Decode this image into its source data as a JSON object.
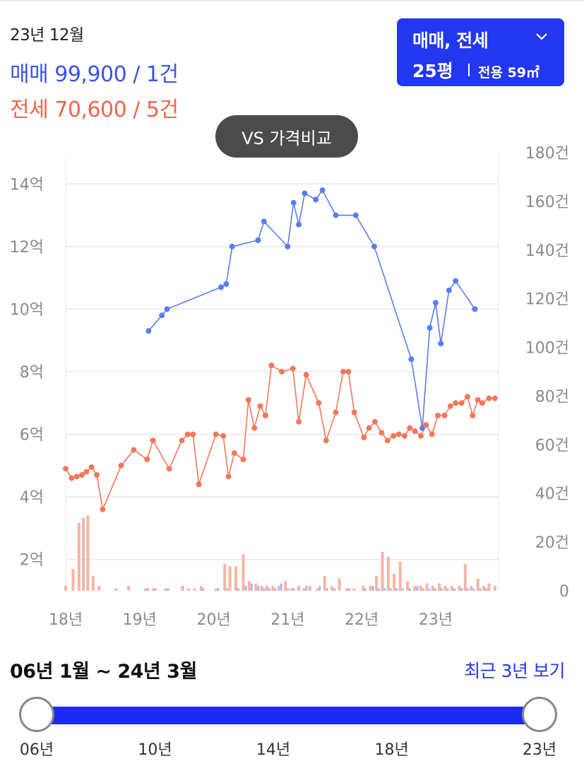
{
  "summary": {
    "date": "23년 12월",
    "sale": "매매 99,900 / 1건",
    "jeonse": "전세 70,600 / 5건"
  },
  "type_selector": {
    "trade_type": "매매, 전세",
    "size": "25평",
    "area": "전용 59㎡",
    "icon": "chevron-down-icon"
  },
  "vs_button": {
    "label": "VS 가격비교"
  },
  "chart_data": {
    "type": "line",
    "colors": {
      "sale": "#5b7cf0",
      "jeonse": "#f4775a",
      "grid": "#e8e8e8"
    },
    "x_axis": {
      "ticks": [
        "18년",
        "19년",
        "20년",
        "21년",
        "22년",
        "23년"
      ],
      "tick_values": [
        2018,
        2019,
        2020,
        2021,
        2022,
        2023
      ],
      "range": [
        2018,
        2023.85
      ]
    },
    "y_left": {
      "ticks": [
        "2억",
        "4억",
        "6억",
        "8억",
        "10억",
        "12억",
        "14억"
      ],
      "tick_values": [
        2,
        4,
        6,
        8,
        10,
        12,
        14
      ],
      "range": [
        1,
        15
      ]
    },
    "y_right": {
      "ticks": [
        "0",
        "20건",
        "40건",
        "60건",
        "80건",
        "100건",
        "120건",
        "140건",
        "160건",
        "180건"
      ],
      "tick_values": [
        0,
        20,
        40,
        60,
        80,
        100,
        120,
        140,
        160,
        180
      ],
      "range": [
        0,
        180
      ]
    },
    "grid": true,
    "series": [
      {
        "key": "sale",
        "x": [
          2019.12,
          2019.3,
          2019.37,
          2020.1,
          2020.17,
          2020.25,
          2020.6,
          2020.68,
          2021.0,
          2021.08,
          2021.15,
          2021.23,
          2021.38,
          2021.47,
          2021.65,
          2021.92,
          2022.17,
          2022.67,
          2022.82,
          2022.92,
          2023.0,
          2023.07,
          2023.18,
          2023.27,
          2023.53
        ],
        "values": [
          9.3,
          9.8,
          10.0,
          10.7,
          10.8,
          12.0,
          12.2,
          12.8,
          12.0,
          13.4,
          12.7,
          13.7,
          13.5,
          13.8,
          13.0,
          13.0,
          12.0,
          8.4,
          6.2,
          9.4,
          10.2,
          8.9,
          10.6,
          10.9,
          10.0
        ]
      },
      {
        "key": "jeonse",
        "x": [
          2018.0,
          2018.08,
          2018.15,
          2018.22,
          2018.28,
          2018.35,
          2018.42,
          2018.5,
          2018.75,
          2018.92,
          2019.1,
          2019.18,
          2019.4,
          2019.57,
          2019.65,
          2019.72,
          2019.8,
          2020.03,
          2020.13,
          2020.2,
          2020.28,
          2020.4,
          2020.47,
          2020.55,
          2020.63,
          2020.7,
          2020.78,
          2020.92,
          2021.07,
          2021.15,
          2021.25,
          2021.42,
          2021.52,
          2021.65,
          2021.75,
          2021.82,
          2021.9,
          2022.03,
          2022.1,
          2022.18,
          2022.27,
          2022.35,
          2022.43,
          2022.5,
          2022.58,
          2022.65,
          2022.72,
          2022.8,
          2022.87,
          2022.95,
          2023.03,
          2023.12,
          2023.2,
          2023.27,
          2023.35,
          2023.43,
          2023.5,
          2023.57,
          2023.63,
          2023.72,
          2023.8
        ],
        "values": [
          4.9,
          4.6,
          4.65,
          4.7,
          4.8,
          4.95,
          4.7,
          3.6,
          5.0,
          5.5,
          5.2,
          5.8,
          4.9,
          5.8,
          6.0,
          6.0,
          4.4,
          6.0,
          5.95,
          4.65,
          5.4,
          5.2,
          7.1,
          6.2,
          6.9,
          6.6,
          8.2,
          8.0,
          8.1,
          6.4,
          7.9,
          7.0,
          5.8,
          6.7,
          8.0,
          8.0,
          6.7,
          5.9,
          6.2,
          6.4,
          6.05,
          5.8,
          5.95,
          6.0,
          5.95,
          6.2,
          6.1,
          5.95,
          6.3,
          6.0,
          6.6,
          6.6,
          6.9,
          7.0,
          7.0,
          7.2,
          6.6,
          7.1,
          7.0,
          7.15,
          7.15
        ]
      }
    ],
    "volume": {
      "x": [
        2018.0,
        2018.1,
        2018.18,
        2018.24,
        2018.3,
        2018.37,
        2018.45,
        2018.68,
        2018.85,
        2019.08,
        2019.18,
        2019.35,
        2019.58,
        2019.66,
        2019.74,
        2019.83,
        2020.03,
        2020.15,
        2020.22,
        2020.3,
        2020.4,
        2020.48,
        2020.57,
        2020.65,
        2020.72,
        2020.8,
        2020.88,
        2020.97,
        2021.05,
        2021.15,
        2021.22,
        2021.3,
        2021.4,
        2021.5,
        2021.6,
        2021.7,
        2021.8,
        2021.9,
        2022.02,
        2022.12,
        2022.2,
        2022.28,
        2022.36,
        2022.44,
        2022.52,
        2022.62,
        2022.72,
        2022.8,
        2022.88,
        2022.96,
        2023.05,
        2023.13,
        2023.22,
        2023.32,
        2023.4,
        2023.48,
        2023.57,
        2023.65,
        2023.72,
        2023.8
      ],
      "jeonse": [
        2,
        9,
        28,
        30,
        31,
        6,
        2,
        1,
        2,
        1,
        1,
        1,
        2,
        1,
        1,
        2,
        1,
        11,
        10,
        10,
        15,
        4,
        3,
        2,
        2,
        2,
        2,
        4,
        1,
        2,
        1,
        2,
        1,
        6,
        2,
        5,
        1,
        1,
        2,
        2,
        6,
        16,
        14,
        7,
        12,
        4,
        2,
        2,
        3,
        2,
        3,
        2,
        2,
        2,
        11,
        2,
        5,
        2,
        3,
        2
      ],
      "sale": [
        0,
        0,
        0,
        0,
        0,
        0,
        0,
        0,
        0,
        1,
        1,
        1,
        0,
        0,
        0,
        1,
        1,
        1,
        0,
        1,
        2,
        3,
        2,
        1,
        1,
        1,
        3,
        1,
        1,
        0,
        2,
        0,
        2,
        1,
        1,
        0,
        1,
        0,
        1,
        2,
        1,
        1,
        1,
        1,
        1,
        1,
        2,
        1,
        1,
        1,
        1,
        1,
        1,
        1,
        1,
        1,
        1,
        1,
        0,
        0
      ]
    }
  },
  "range": {
    "label": "06년 1월 ~ 24년 3월",
    "recent_link": "최근 3년 보기",
    "ticks": [
      "06년",
      "10년",
      "14년",
      "18년",
      "23년"
    ],
    "tick_years": [
      2006,
      2010,
      2014,
      2018,
      2023
    ],
    "min_year": 2006,
    "max_year": 2023,
    "start_year": 2006,
    "end_year": 2023
  }
}
